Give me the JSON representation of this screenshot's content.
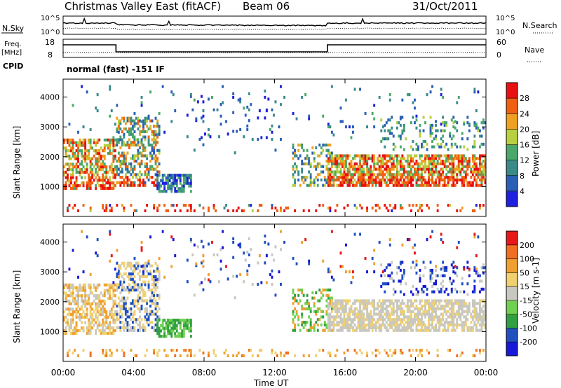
{
  "header": {
    "station": "Christmas Valley East (fitACF)",
    "beam": "Beam 06",
    "date": "31/Oct/2011",
    "mode_line": "normal (fast) -151 IF"
  },
  "top_panels": {
    "nsky_label": "N.Sky",
    "nsearch_label": "N.Search",
    "noise_ticks_left": [
      "10^5",
      "10^0"
    ],
    "noise_ticks_right": [
      "10^5",
      "10^0"
    ],
    "freq_label": "Freq.",
    "freq_unit": "[MHz]",
    "freq_ticks": [
      "18",
      "8"
    ],
    "nave_label": "Nave",
    "nave_ticks": [
      "60",
      "0"
    ],
    "cpid_label": "CPID"
  },
  "colors": {
    "power_scale": [
      "#1f1fe0",
      "#2a5fb8",
      "#3a8a8a",
      "#4aa86a",
      "#b8d040",
      "#f0a020",
      "#f06010",
      "#e81010"
    ],
    "velocity_scale": [
      "#1818d8",
      "#2050c0",
      "#30a040",
      "#70d050",
      "#c8c8c0",
      "#f0d070",
      "#f0a030",
      "#f07020",
      "#e81818"
    ]
  },
  "chart_data": [
    {
      "type": "heatmap",
      "quantity": "Power",
      "colorbar_label": "Power [dB]",
      "colorbar_ticks": [
        "4",
        "8",
        "12",
        "16",
        "20",
        "24",
        "28"
      ],
      "colorbar_range": [
        0,
        32
      ],
      "ylabel": "Slant Range [km]",
      "ylim": [
        0,
        4600
      ],
      "yticks": [
        "1000",
        "2000",
        "3000",
        "4000"
      ],
      "xlabel": "Time UT",
      "xlim_hours": [
        0,
        24
      ],
      "xticks": [
        "00:00",
        "04:00",
        "08:00",
        "12:00",
        "16:00",
        "20:00",
        "00:00"
      ],
      "grid": false
    },
    {
      "type": "heatmap",
      "quantity": "Velocity",
      "colorbar_label": "Velocity [m s-1]",
      "colorbar_ticks": [
        "-200",
        "-100",
        "-50",
        "-15",
        "15",
        "50",
        "100",
        "200"
      ],
      "ylabel": "Slant Range [km]",
      "ylim": [
        0,
        4600
      ],
      "yticks": [
        "1000",
        "2000",
        "3000",
        "4000"
      ],
      "xlabel": "Time UT",
      "xlim_hours": [
        0,
        24
      ],
      "xticks": [
        "00:00",
        "04:00",
        "08:00",
        "12:00",
        "16:00",
        "20:00",
        "00:00"
      ],
      "grid": false
    }
  ]
}
